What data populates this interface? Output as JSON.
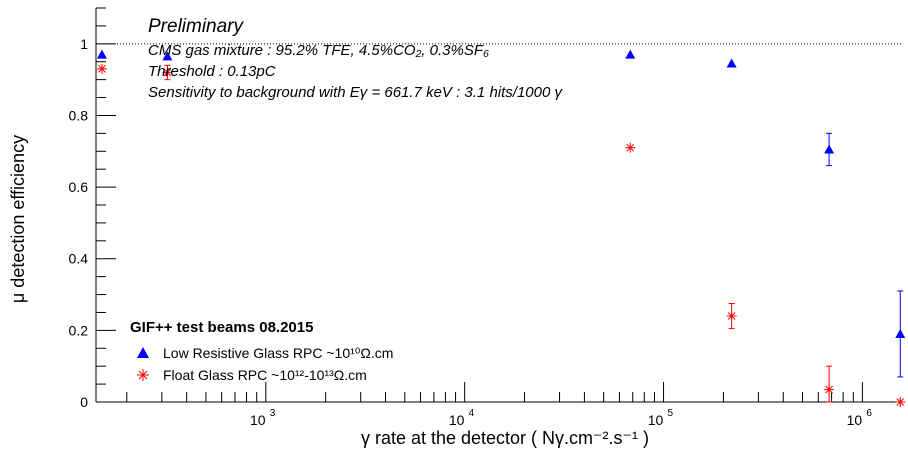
{
  "chart_data": {
    "type": "scatter",
    "title": "",
    "xlabel": "γ rate at the detector ( Nγ.cm⁻².s⁻¹ )",
    "ylabel": "μ detection efficiency",
    "x_scale": "log",
    "xlim": [
      140,
      1600000
    ],
    "ylim": [
      0,
      1.1
    ],
    "y_ticks": [
      "0",
      "0.2",
      "0.4",
      "0.6",
      "0.8",
      "1"
    ],
    "x_ticks": [
      {
        "value": 1000,
        "label": "10",
        "exp": "3"
      },
      {
        "value": 10000,
        "label": "10",
        "exp": "4"
      },
      {
        "value": 100000,
        "label": "10",
        "exp": "5"
      },
      {
        "value": 1000000,
        "label": "10",
        "exp": "6"
      }
    ],
    "grid": false,
    "reference_line": {
      "y": 1,
      "style": "dotted"
    },
    "annotations": [
      "Preliminary",
      "CMS gas mixture : 95.2% TFE, 4.5%CO₂, 0.3%SF₆",
      "Threshold : 0.13pC",
      "Sensitivity to background with Eγ = 661.7 keV : 3.1 hits/1000 γ"
    ],
    "legend_header": "GIF++ test beams 08.2015",
    "legend_position": "bottom-left",
    "series": [
      {
        "name": "Low Resistive Glass RPC ~10¹⁰Ω.cm",
        "marker": "triangle",
        "color": "#0000ff",
        "points": [
          {
            "x": 150,
            "y": 0.97
          },
          {
            "x": 320,
            "y": 0.965
          },
          {
            "x": 68000,
            "y": 0.97
          },
          {
            "x": 220000,
            "y": 0.945
          },
          {
            "x": 680000,
            "y": 0.705,
            "err": 0.045
          },
          {
            "x": 1550000,
            "y": 0.19,
            "err": 0.12
          }
        ]
      },
      {
        "name": "Float Glass RPC ~10¹²-10¹³Ω.cm",
        "marker": "asterisk",
        "color": "#ff0000",
        "points": [
          {
            "x": 150,
            "y": 0.93
          },
          {
            "x": 320,
            "y": 0.92,
            "err": 0.02
          },
          {
            "x": 68000,
            "y": 0.71
          },
          {
            "x": 220000,
            "y": 0.24,
            "err": 0.035
          },
          {
            "x": 680000,
            "y": 0.035,
            "err": 0.065
          },
          {
            "x": 1550000,
            "y": 0.0
          }
        ]
      }
    ]
  }
}
